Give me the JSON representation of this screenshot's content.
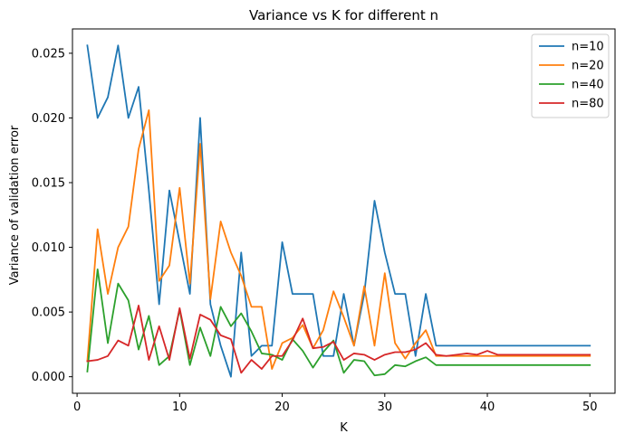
{
  "chart_data": {
    "type": "line",
    "title": "Variance vs K for different n",
    "xlabel": "K",
    "ylabel": "Variance of validation error",
    "xlim": [
      -0.45,
      52.45
    ],
    "ylim": [
      -0.00128,
      0.02688
    ],
    "xticks": [
      0,
      10,
      20,
      30,
      40,
      50
    ],
    "xtick_labels": [
      "0",
      "10",
      "20",
      "30",
      "40",
      "50"
    ],
    "yticks": [
      0.0,
      0.005,
      0.01,
      0.015,
      0.02,
      0.025
    ],
    "ytick_labels": [
      "0.000",
      "0.005",
      "0.010",
      "0.015",
      "0.020",
      "0.025"
    ],
    "grid": false,
    "legend_position": "top-right",
    "x": [
      1,
      2,
      3,
      4,
      5,
      6,
      7,
      8,
      9,
      10,
      11,
      12,
      13,
      14,
      15,
      16,
      17,
      18,
      19,
      20,
      21,
      22,
      23,
      24,
      25,
      26,
      27,
      28,
      29,
      30,
      31,
      32,
      33,
      34,
      35,
      36,
      37,
      38,
      39,
      40,
      41,
      42,
      43,
      44,
      45,
      46,
      47,
      48,
      49,
      50
    ],
    "series": [
      {
        "name": "n=10",
        "color": "#1f77b4",
        "values": [
          0.0256,
          0.02,
          0.0216,
          0.0256,
          0.02,
          0.0224,
          0.0144,
          0.0056,
          0.0144,
          0.0104,
          0.0064,
          0.02,
          0.0056,
          0.0024,
          0.0,
          0.0096,
          0.0016,
          0.0024,
          0.0024,
          0.0104,
          0.0064,
          0.0064,
          0.0064,
          0.0016,
          0.0016,
          0.0064,
          0.0024,
          0.0064,
          0.0136,
          0.0096,
          0.0064,
          0.0064,
          0.0016,
          0.0064,
          0.0024,
          0.0024,
          0.0024,
          0.0024,
          0.0024,
          0.0024,
          0.0024,
          0.0024,
          0.0024,
          0.0024,
          0.0024,
          0.0024,
          0.0024,
          0.0024,
          0.0024,
          0.0024
        ]
      },
      {
        "name": "n=20",
        "color": "#ff7f0e",
        "values": [
          0.0012,
          0.0114,
          0.0064,
          0.01,
          0.0116,
          0.0176,
          0.0206,
          0.0074,
          0.0086,
          0.0146,
          0.0072,
          0.018,
          0.006,
          0.012,
          0.0096,
          0.0078,
          0.0054,
          0.0054,
          0.0006,
          0.0026,
          0.003,
          0.004,
          0.0022,
          0.0036,
          0.0066,
          0.0046,
          0.0024,
          0.007,
          0.0024,
          0.008,
          0.0026,
          0.0014,
          0.0026,
          0.0036,
          0.0016,
          0.0016,
          0.0016,
          0.0016,
          0.0016,
          0.0016,
          0.0016,
          0.0016,
          0.0016,
          0.0016,
          0.0016,
          0.0016,
          0.0016,
          0.0016,
          0.0016,
          0.0016
        ]
      },
      {
        "name": "n=40",
        "color": "#2ca02c",
        "values": [
          0.0004,
          0.0083,
          0.0026,
          0.0072,
          0.0059,
          0.0021,
          0.0047,
          0.0009,
          0.0016,
          0.0052,
          0.0009,
          0.0038,
          0.0016,
          0.0054,
          0.0039,
          0.0049,
          0.0035,
          0.0018,
          0.0017,
          0.0013,
          0.0029,
          0.002,
          0.0007,
          0.0019,
          0.0028,
          0.0003,
          0.0013,
          0.0012,
          0.0001,
          0.0002,
          0.0009,
          0.0008,
          0.0012,
          0.0015,
          0.0009,
          0.0009,
          0.0009,
          0.0009,
          0.0009,
          0.0009,
          0.0009,
          0.0009,
          0.0009,
          0.0009,
          0.0009,
          0.0009,
          0.0009,
          0.0009,
          0.0009,
          0.0009
        ]
      },
      {
        "name": "n=80",
        "color": "#d62728",
        "values": [
          0.0012,
          0.0013,
          0.0016,
          0.0028,
          0.0024,
          0.0055,
          0.0013,
          0.0039,
          0.0013,
          0.0053,
          0.0014,
          0.0048,
          0.0044,
          0.0032,
          0.0029,
          0.0003,
          0.0013,
          0.0006,
          0.0016,
          0.0016,
          0.0028,
          0.0045,
          0.0022,
          0.0023,
          0.0027,
          0.0013,
          0.0018,
          0.0017,
          0.0013,
          0.0017,
          0.0019,
          0.0019,
          0.0021,
          0.0026,
          0.0017,
          0.0016,
          0.0017,
          0.0018,
          0.0017,
          0.002,
          0.0017,
          0.0017,
          0.0017,
          0.0017,
          0.0017,
          0.0017,
          0.0017,
          0.0017,
          0.0017,
          0.0017
        ]
      }
    ]
  }
}
